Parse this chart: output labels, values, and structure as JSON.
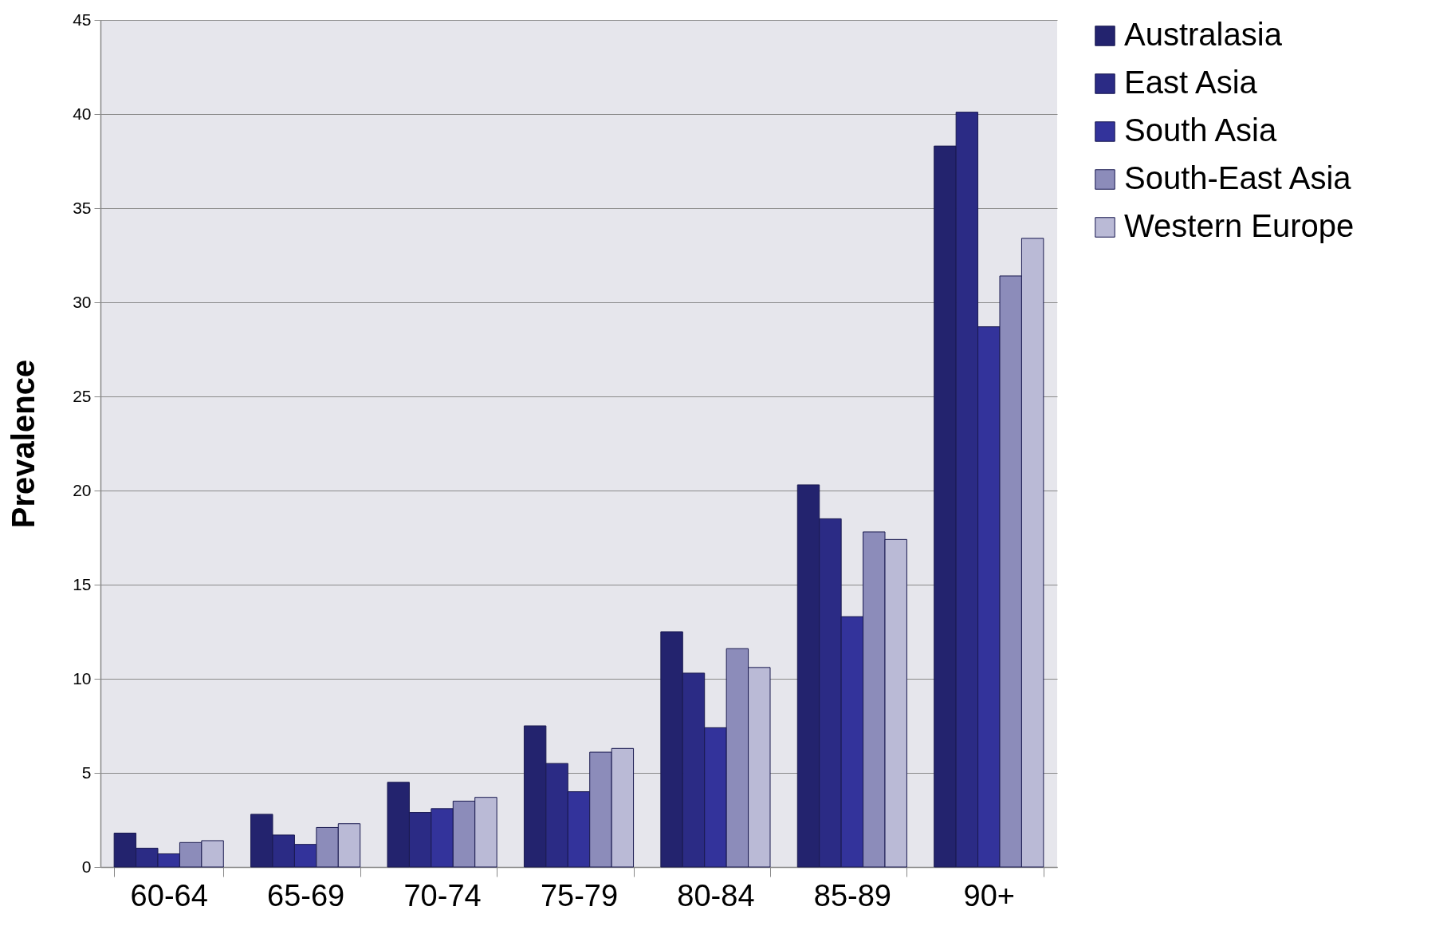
{
  "chart_data": {
    "type": "bar",
    "ylabel": "Prevalence",
    "categories": [
      "60-64",
      "65-69",
      "70-74",
      "75-79",
      "80-84",
      "85-89",
      "90+"
    ],
    "series": [
      {
        "name": "Australasia",
        "color": "#23236e",
        "values": [
          1.8,
          2.8,
          4.5,
          7.5,
          12.5,
          20.3,
          38.3
        ]
      },
      {
        "name": "East Asia",
        "color": "#2b2b85",
        "values": [
          1.0,
          1.7,
          2.9,
          5.5,
          10.3,
          18.5,
          40.1
        ]
      },
      {
        "name": "South Asia",
        "color": "#33339b",
        "values": [
          0.7,
          1.2,
          3.1,
          4.0,
          7.4,
          13.3,
          28.7
        ]
      },
      {
        "name": "South-East Asia",
        "color": "#8c8cba",
        "values": [
          1.3,
          2.1,
          3.5,
          6.1,
          11.6,
          17.8,
          31.4
        ]
      },
      {
        "name": "Western Europe",
        "color": "#babad6",
        "values": [
          1.4,
          2.3,
          3.7,
          6.3,
          10.6,
          17.4,
          33.4
        ]
      }
    ],
    "ylim": [
      0,
      45
    ],
    "yticks": [
      0,
      5,
      10,
      15,
      20,
      25,
      30,
      35,
      40,
      45
    ],
    "grid": "y",
    "legend": "right"
  }
}
